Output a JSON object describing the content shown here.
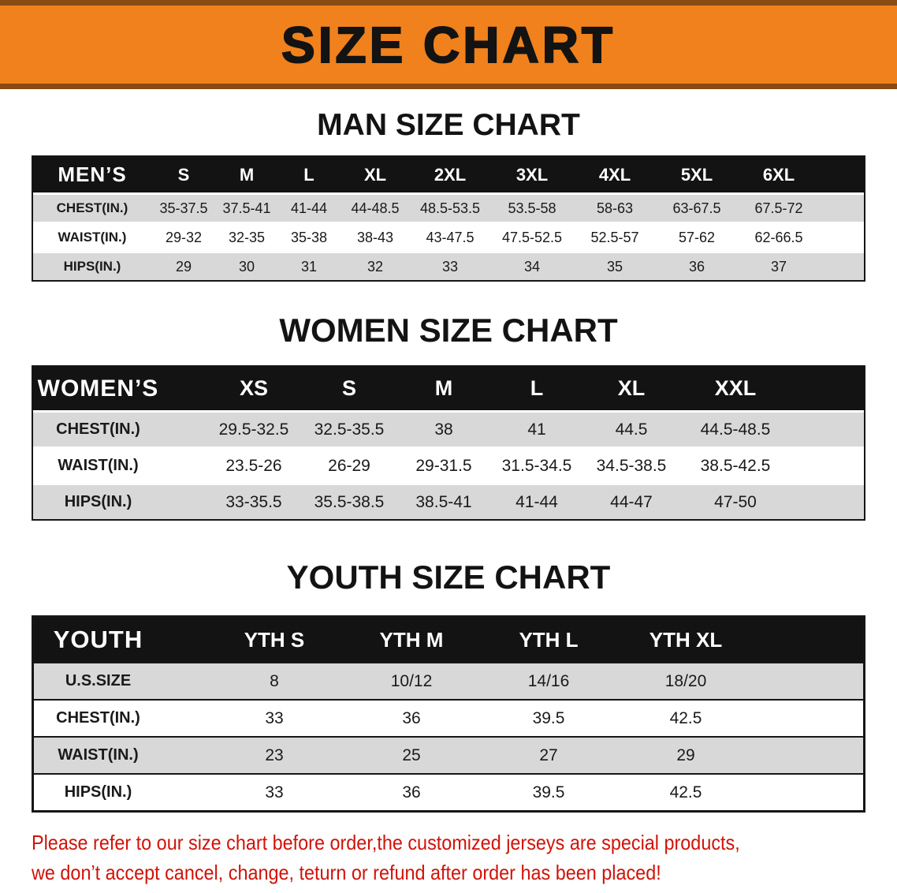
{
  "banner": {
    "title": "SIZE CHART"
  },
  "colors": {
    "banner_orange": "#f0811c",
    "banner_edge_brown": "#8a4a12",
    "table_header_black": "#131313",
    "row_gray": "#d8d8d8",
    "disclaimer_red": "#d01309"
  },
  "sections": [
    {
      "heading": "MAN SIZE CHART",
      "table": {
        "header_label": "MEN’S",
        "columns": [
          "S",
          "M",
          "L",
          "XL",
          "2XL",
          "3XL",
          "4XL",
          "5XL",
          "6XL"
        ],
        "rows": [
          {
            "label": "CHEST(IN.)",
            "values": [
              "35-37.5",
              "37.5-41",
              "41-44",
              "44-48.5",
              "48.5-53.5",
              "53.5-58",
              "58-63",
              "63-67.5",
              "67.5-72"
            ]
          },
          {
            "label": "WAIST(IN.)",
            "values": [
              "29-32",
              "32-35",
              "35-38",
              "38-43",
              "43-47.5",
              "47.5-52.5",
              "52.5-57",
              "57-62",
              "62-66.5"
            ]
          },
          {
            "label": "HIPS(IN.)",
            "values": [
              "29",
              "30",
              "31",
              "32",
              "33",
              "34",
              "35",
              "36",
              "37"
            ]
          }
        ]
      }
    },
    {
      "heading": "WOMEN SIZE CHART",
      "table": {
        "header_label": "WOMEN’S",
        "columns": [
          "XS",
          "S",
          "M",
          "L",
          "XL",
          "XXL"
        ],
        "rows": [
          {
            "label": "CHEST(IN.)",
            "values": [
              "29.5-32.5",
              "32.5-35.5",
              "38",
              "41",
              "44.5",
              "44.5-48.5"
            ]
          },
          {
            "label": "WAIST(IN.)",
            "values": [
              "23.5-26",
              "26-29",
              "29-31.5",
              "31.5-34.5",
              "34.5-38.5",
              "38.5-42.5"
            ]
          },
          {
            "label": "HIPS(IN.)",
            "values": [
              "33-35.5",
              "35.5-38.5",
              "38.5-41",
              "41-44",
              "44-47",
              "47-50"
            ]
          }
        ]
      }
    },
    {
      "heading": "YOUTH SIZE CHART",
      "table": {
        "header_label": "YOUTH",
        "columns": [
          "YTH S",
          "YTH M",
          "YTH L",
          "YTH XL"
        ],
        "rows": [
          {
            "label": "U.S.SIZE",
            "values": [
              "8",
              "10/12",
              "14/16",
              "18/20"
            ]
          },
          {
            "label": "CHEST(IN.)",
            "values": [
              "33",
              "36",
              "39.5",
              "42.5"
            ]
          },
          {
            "label": "WAIST(IN.)",
            "values": [
              "23",
              "25",
              "27",
              "29"
            ]
          },
          {
            "label": "HIPS(IN.)",
            "values": [
              "33",
              "36",
              "39.5",
              "42.5"
            ]
          }
        ]
      }
    }
  ],
  "disclaimer": {
    "line1": "Please refer to our size chart before order,the customized jerseys are special products,",
    "line2": "we don’t accept cancel, change, teturn or refund after order has been placed!"
  }
}
